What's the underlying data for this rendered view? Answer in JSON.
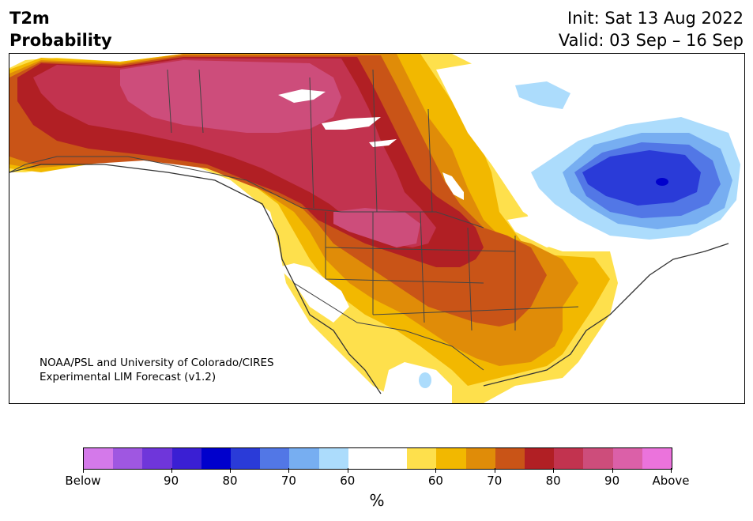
{
  "header": {
    "title_line1": "T2m",
    "title_line2": "Probability",
    "init": "Init: Sat 13 Aug 2022",
    "valid": "Valid: 03 Sep – 16 Sep"
  },
  "credit": {
    "line1": "NOAA/PSL and University of Colorado/CIRES",
    "line2": "Experimental LIM Forecast (v1.2)"
  },
  "colorbar": {
    "colors": [
      "#d479ea",
      "#9f57e1",
      "#6f36da",
      "#3a1fd3",
      "#0000cc",
      "#2a3bd8",
      "#5277e6",
      "#77aef1",
      "#acdcfc",
      "#ffffff",
      "#ffffff",
      "#fee04c",
      "#f2b800",
      "#e08c08",
      "#c95417",
      "#b11f24",
      "#c2334f",
      "#cd4d7b",
      "#db60a8",
      "#eb73dc"
    ],
    "tick_labels": [
      "Below",
      "90",
      "80",
      "70",
      "60",
      "60",
      "70",
      "80",
      "90",
      "Above"
    ],
    "unit": "%"
  },
  "map": {
    "regions": "North America (Canada, United States, Mexico)",
    "warm_colors": {
      "c60": "#fee04c",
      "c70": "#f2b800",
      "c75": "#e08c08",
      "c80": "#c95417",
      "c85": "#b11f24",
      "c90": "#c2334f",
      "c95": "#cd4d7b"
    },
    "cold_colors": {
      "c60": "#acdcfc",
      "c70": "#77aef1",
      "c75": "#5277e6",
      "c80": "#2a3bd8",
      "c90": "#0000cc"
    }
  }
}
